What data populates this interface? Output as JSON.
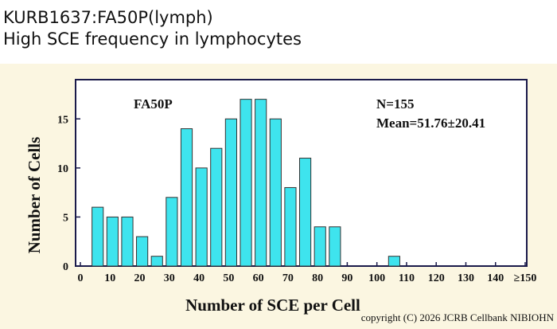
{
  "header": {
    "title": "KURB1637:FA50P(lymph)",
    "subtitle": "High SCE frequency in lymphocytes"
  },
  "chart_data": {
    "type": "histogram",
    "bins": [
      5,
      10,
      15,
      20,
      25,
      30,
      35,
      40,
      45,
      50,
      55,
      60,
      65,
      70,
      75,
      80,
      85,
      90,
      95,
      100,
      105,
      110
    ],
    "values": [
      6,
      5,
      5,
      3,
      1,
      7,
      14,
      10,
      12,
      15,
      17,
      17,
      15,
      8,
      11,
      4,
      4,
      0,
      0,
      0,
      1
    ],
    "color": "#3ee4ee",
    "xlim": [
      0,
      150
    ],
    "xticks": [
      0,
      10,
      20,
      30,
      40,
      50,
      60,
      70,
      80,
      90,
      100,
      110,
      120,
      130,
      140,
      {
        "value": 150,
        "label": "≥150"
      }
    ],
    "ylim": [
      0,
      19
    ],
    "yticks": [
      0,
      5,
      10,
      15
    ],
    "x_label": "Number of SCE per Cell",
    "y_label": "Number of Cells",
    "annotations": [
      "FA50P",
      "N=155",
      "Mean=51.76±20.41"
    ]
  },
  "footer": {
    "copyright": "copyright (C) 2026 JCRB Cellbank NIBIOHN"
  }
}
